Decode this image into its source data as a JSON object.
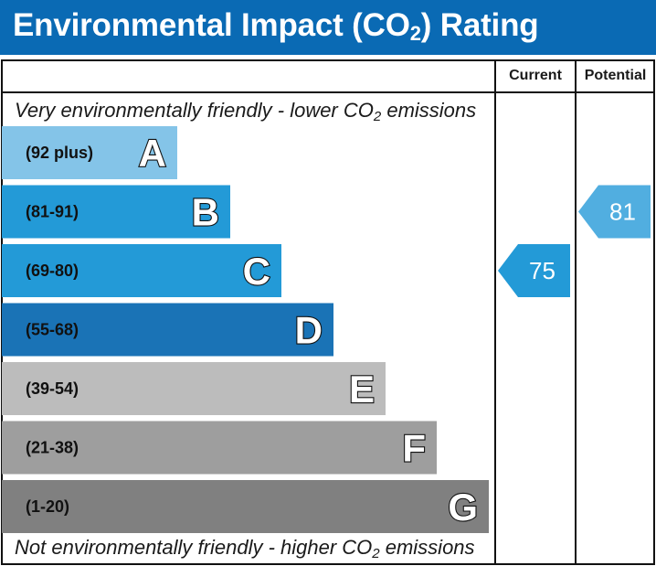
{
  "header": {
    "title_pre": "Environmental Impact (CO",
    "title_sub": "2",
    "title_post": ") Rating",
    "background": "#0a6ab4"
  },
  "columns": {
    "current": "Current",
    "potential": "Potential"
  },
  "captions": {
    "top_pre": "Very environmentally friendly - lower CO",
    "top_sub": "2",
    "top_post": " emissions",
    "bottom_pre": "Not environmentally friendly - higher CO",
    "bottom_sub": "2",
    "bottom_post": " emissions"
  },
  "chart_data": {
    "type": "bar",
    "title": "Environmental Impact (CO2) Rating",
    "orientation": "horizontal",
    "bands": [
      {
        "letter": "A",
        "range": "(92 plus)",
        "min": 92,
        "max": 100,
        "color": "#84c4e8"
      },
      {
        "letter": "B",
        "range": "(81-91)",
        "min": 81,
        "max": 91,
        "color": "#239ad7"
      },
      {
        "letter": "C",
        "range": "(69-80)",
        "min": 69,
        "max": 80,
        "color": "#239ad7"
      },
      {
        "letter": "D",
        "range": "(55-68)",
        "min": 55,
        "max": 68,
        "color": "#1a73b6"
      },
      {
        "letter": "E",
        "range": "(39-54)",
        "min": 39,
        "max": 54,
        "color": "#bcbcbc"
      },
      {
        "letter": "F",
        "range": "(21-38)",
        "min": 21,
        "max": 38,
        "color": "#9e9e9e"
      },
      {
        "letter": "G",
        "range": "(1-20)",
        "min": 1,
        "max": 20,
        "color": "#808080"
      }
    ],
    "current": {
      "value": 75,
      "band": "C",
      "color": "#239ad7"
    },
    "potential": {
      "value": 81,
      "band": "B",
      "color": "#51aee0"
    }
  }
}
